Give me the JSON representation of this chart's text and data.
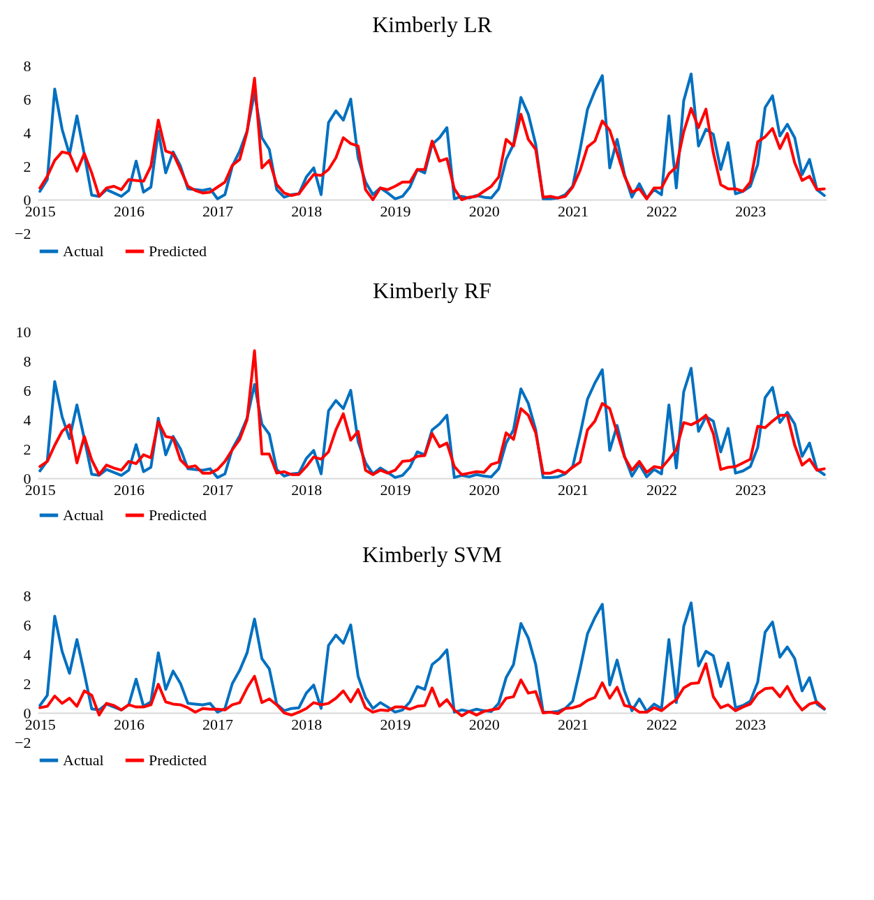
{
  "chart_data": [
    {
      "type": "line",
      "title": "Kimberly LR",
      "categories": [
        "2015",
        null,
        null,
        null,
        null,
        null,
        null,
        null,
        null,
        null,
        null,
        null,
        "2016",
        null,
        null,
        null,
        null,
        null,
        null,
        null,
        null,
        null,
        null,
        null,
        "2017",
        null,
        null,
        null,
        null,
        null,
        null,
        null,
        null,
        null,
        null,
        null,
        "2018",
        null,
        null,
        null,
        null,
        null,
        null,
        null,
        null,
        null,
        null,
        null,
        "2019",
        null,
        null,
        null,
        null,
        null,
        null,
        null,
        null,
        null,
        null,
        null,
        "2020",
        null,
        null,
        null,
        null,
        null,
        null,
        null,
        null,
        null,
        null,
        null,
        "2021",
        null,
        null,
        null,
        null,
        null,
        null,
        null,
        null,
        null,
        null,
        null,
        "2022",
        null,
        null,
        null,
        null,
        null,
        null,
        null,
        null,
        null,
        null,
        null,
        "2023",
        null,
        null,
        null,
        null,
        null,
        null,
        null,
        null,
        null,
        null
      ],
      "series": [
        {
          "name": "Actual",
          "color": "#0070c0",
          "values": [
            0.5,
            1.2,
            6.6,
            4.2,
            2.7,
            5.0,
            2.7,
            0.27,
            0.2,
            0.6,
            0.4,
            0.2,
            0.55,
            2.3,
            0.45,
            0.75,
            4.1,
            1.6,
            2.85,
            2.0,
            0.65,
            0.6,
            0.55,
            0.65,
            0.05,
            0.3,
            2.0,
            2.9,
            4.1,
            6.4,
            3.7,
            3.0,
            0.6,
            0.15,
            0.3,
            0.35,
            1.35,
            1.9,
            0.3,
            4.6,
            5.3,
            4.75,
            6.0,
            2.5,
            1.05,
            0.3,
            0.7,
            0.4,
            0.05,
            0.2,
            0.75,
            1.8,
            1.6,
            3.3,
            3.7,
            4.3,
            0.05,
            0.2,
            0.1,
            0.25,
            0.15,
            0.1,
            0.65,
            2.4,
            3.3,
            6.1,
            5.1,
            3.3,
            0.05,
            0.05,
            0.1,
            0.3,
            0.8,
            3.0,
            5.4,
            6.5,
            7.4,
            1.9,
            3.6,
            1.5,
            0.15,
            0.95,
            0.1,
            0.6,
            0.3,
            5.0,
            0.7,
            5.9,
            7.5,
            3.2,
            4.2,
            3.9,
            1.8,
            3.4,
            0.35,
            0.5,
            0.8,
            2.1,
            5.5,
            6.2,
            3.8,
            4.5,
            3.7,
            1.5,
            2.4,
            0.6,
            0.25
          ]
        },
        {
          "name": "Predicted",
          "color": "#ff0000",
          "values": [
            0.7,
            1.4,
            2.35,
            2.85,
            2.75,
            1.7,
            2.75,
            1.6,
            0.2,
            0.7,
            0.8,
            0.6,
            1.2,
            1.15,
            1.1,
            2.0,
            4.75,
            2.9,
            2.75,
            1.8,
            0.8,
            0.55,
            0.4,
            0.45,
            0.75,
            1.05,
            2.05,
            2.4,
            4.05,
            7.25,
            1.9,
            2.35,
            0.9,
            0.4,
            0.25,
            0.35,
            0.95,
            1.5,
            1.45,
            1.8,
            2.5,
            3.7,
            3.35,
            3.2,
            0.6,
            0,
            0.7,
            0.6,
            0.8,
            1.05,
            1.05,
            1.8,
            1.8,
            3.5,
            2.3,
            2.45,
            0.65,
            0,
            0.15,
            0.2,
            0.5,
            0.8,
            1.35,
            3.6,
            3.2,
            5.1,
            3.6,
            3.0,
            0.15,
            0.2,
            0.1,
            0.2,
            0.75,
            1.75,
            3.15,
            3.5,
            4.7,
            4.15,
            2.8,
            1.4,
            0.45,
            0.65,
            0.05,
            0.7,
            0.7,
            1.55,
            1.95,
            4.05,
            5.45,
            4.3,
            5.4,
            2.8,
            0.9,
            0.65,
            0.65,
            0.5,
            1.05,
            3.45,
            3.75,
            4.25,
            3.05,
            3.95,
            2.2,
            1.15,
            1.4,
            0.6,
            0.65
          ]
        }
      ],
      "ylim": [
        -2,
        8
      ],
      "yticks": [
        -2,
        0,
        2,
        4,
        6,
        8
      ],
      "legend": "bottom",
      "line_style": "solid"
    },
    {
      "type": "line",
      "title": "Kimberly RF",
      "categories": [
        "2015",
        null,
        null,
        null,
        null,
        null,
        null,
        null,
        null,
        null,
        null,
        null,
        "2016",
        null,
        null,
        null,
        null,
        null,
        null,
        null,
        null,
        null,
        null,
        null,
        "2017",
        null,
        null,
        null,
        null,
        null,
        null,
        null,
        null,
        null,
        null,
        null,
        "2018",
        null,
        null,
        null,
        null,
        null,
        null,
        null,
        null,
        null,
        null,
        null,
        "2019",
        null,
        null,
        null,
        null,
        null,
        null,
        null,
        null,
        null,
        null,
        null,
        "2020",
        null,
        null,
        null,
        null,
        null,
        null,
        null,
        null,
        null,
        null,
        null,
        "2021",
        null,
        null,
        null,
        null,
        null,
        null,
        null,
        null,
        null,
        null,
        null,
        "2022",
        null,
        null,
        null,
        null,
        null,
        null,
        null,
        null,
        null,
        null,
        null,
        "2023",
        null,
        null,
        null,
        null,
        null,
        null,
        null,
        null,
        null,
        null
      ],
      "series": [
        {
          "name": "Actual",
          "color": "#0070c0",
          "values": [
            0.5,
            1.2,
            6.6,
            4.2,
            2.7,
            5.0,
            2.7,
            0.27,
            0.2,
            0.6,
            0.4,
            0.2,
            0.55,
            2.3,
            0.45,
            0.75,
            4.1,
            1.6,
            2.85,
            2.0,
            0.65,
            0.6,
            0.55,
            0.65,
            0.05,
            0.3,
            2.0,
            2.9,
            4.1,
            6.4,
            3.7,
            3.0,
            0.6,
            0.15,
            0.3,
            0.35,
            1.35,
            1.9,
            0.3,
            4.6,
            5.3,
            4.75,
            6.0,
            2.5,
            1.05,
            0.3,
            0.7,
            0.4,
            0.05,
            0.2,
            0.75,
            1.8,
            1.6,
            3.3,
            3.7,
            4.3,
            0.05,
            0.2,
            0.1,
            0.25,
            0.15,
            0.1,
            0.65,
            2.4,
            3.3,
            6.1,
            5.1,
            3.3,
            0.05,
            0.05,
            0.1,
            0.3,
            0.8,
            3.0,
            5.4,
            6.5,
            7.4,
            1.9,
            3.6,
            1.5,
            0.15,
            0.95,
            0.1,
            0.6,
            0.3,
            5.0,
            0.7,
            5.9,
            7.5,
            3.2,
            4.2,
            3.9,
            1.8,
            3.4,
            0.35,
            0.5,
            0.8,
            2.1,
            5.5,
            6.2,
            3.8,
            4.5,
            3.7,
            1.5,
            2.4,
            0.6,
            0.25
          ]
        },
        {
          "name": "Predicted",
          "color": "#ff0000",
          "values": [
            0.8,
            1.15,
            2.25,
            3.2,
            3.65,
            1.05,
            2.85,
            1.25,
            0.25,
            0.9,
            0.7,
            0.55,
            1.15,
            1.0,
            1.6,
            1.4,
            3.85,
            2.85,
            2.75,
            1.25,
            0.75,
            0.85,
            0.35,
            0.35,
            0.6,
            1.15,
            1.95,
            2.65,
            4.0,
            8.7,
            1.65,
            1.65,
            0.35,
            0.45,
            0.25,
            0.25,
            0.8,
            1.45,
            1.3,
            1.8,
            3.3,
            4.4,
            2.6,
            3.2,
            0.55,
            0.25,
            0.55,
            0.35,
            0.55,
            1.15,
            1.2,
            1.5,
            1.55,
            3.05,
            2.15,
            2.4,
            0.8,
            0.25,
            0.35,
            0.45,
            0.4,
            0.95,
            1.1,
            3.1,
            2.65,
            4.75,
            4.3,
            3.1,
            0.35,
            0.35,
            0.55,
            0.35,
            0.75,
            1.1,
            3.3,
            3.9,
            5.1,
            4.75,
            3.1,
            1.45,
            0.55,
            1.15,
            0.4,
            0.8,
            0.7,
            1.3,
            1.95,
            3.8,
            3.65,
            3.9,
            4.3,
            3.05,
            0.6,
            0.75,
            0.8,
            1.05,
            1.3,
            3.55,
            3.45,
            3.9,
            4.3,
            4.3,
            2.25,
            0.9,
            1.3,
            0.55,
            0.65
          ]
        }
      ],
      "ylim": [
        0,
        10
      ],
      "yticks": [
        0,
        2,
        4,
        6,
        8,
        10
      ],
      "legend": "bottom",
      "line_style": "solid"
    },
    {
      "type": "line",
      "title": "Kimberly SVM",
      "categories": [
        "2015",
        null,
        null,
        null,
        null,
        null,
        null,
        null,
        null,
        null,
        null,
        null,
        "2016",
        null,
        null,
        null,
        null,
        null,
        null,
        null,
        null,
        null,
        null,
        null,
        "2017",
        null,
        null,
        null,
        null,
        null,
        null,
        null,
        null,
        null,
        null,
        null,
        "2018",
        null,
        null,
        null,
        null,
        null,
        null,
        null,
        null,
        null,
        null,
        null,
        "2019",
        null,
        null,
        null,
        null,
        null,
        null,
        null,
        null,
        null,
        null,
        null,
        "2020",
        null,
        null,
        null,
        null,
        null,
        null,
        null,
        null,
        null,
        null,
        null,
        "2021",
        null,
        null,
        null,
        null,
        null,
        null,
        null,
        null,
        null,
        null,
        null,
        "2022",
        null,
        null,
        null,
        null,
        null,
        null,
        null,
        null,
        null,
        null,
        null,
        "2023",
        null,
        null,
        null,
        null,
        null,
        null,
        null,
        null,
        null,
        null
      ],
      "series": [
        {
          "name": "Actual",
          "color": "#0070c0",
          "values": [
            0.5,
            1.2,
            6.6,
            4.2,
            2.7,
            5.0,
            2.7,
            0.27,
            0.2,
            0.6,
            0.4,
            0.2,
            0.55,
            2.3,
            0.45,
            0.75,
            4.1,
            1.6,
            2.85,
            2.0,
            0.65,
            0.6,
            0.55,
            0.65,
            0.05,
            0.3,
            2.0,
            2.9,
            4.1,
            6.4,
            3.7,
            3.0,
            0.6,
            0.15,
            0.3,
            0.35,
            1.35,
            1.9,
            0.3,
            4.6,
            5.3,
            4.75,
            6.0,
            2.5,
            1.05,
            0.3,
            0.7,
            0.4,
            0.05,
            0.2,
            0.75,
            1.8,
            1.6,
            3.3,
            3.7,
            4.3,
            0.05,
            0.2,
            0.1,
            0.25,
            0.15,
            0.1,
            0.65,
            2.4,
            3.3,
            6.1,
            5.1,
            3.3,
            0.05,
            0.05,
            0.1,
            0.3,
            0.8,
            3.0,
            5.4,
            6.5,
            7.4,
            1.9,
            3.6,
            1.5,
            0.15,
            0.95,
            0.1,
            0.6,
            0.3,
            5.0,
            0.7,
            5.9,
            7.5,
            3.2,
            4.2,
            3.9,
            1.8,
            3.4,
            0.35,
            0.5,
            0.8,
            2.1,
            5.5,
            6.2,
            3.8,
            4.5,
            3.7,
            1.5,
            2.4,
            0.6,
            0.25
          ]
        },
        {
          "name": "Predicted",
          "color": "#ff0000",
          "values": [
            0.35,
            0.45,
            1.15,
            0.65,
            1.0,
            0.45,
            1.5,
            1.2,
            -0.15,
            0.65,
            0.5,
            0.2,
            0.55,
            0.4,
            0.4,
            0.55,
            1.95,
            0.75,
            0.6,
            0.55,
            0.35,
            0.05,
            0.3,
            0.25,
            0.25,
            0.2,
            0.55,
            0.7,
            1.7,
            2.5,
            0.7,
            0.95,
            0.55,
            0,
            -0.15,
            0.05,
            0.3,
            0.7,
            0.55,
            0.65,
            1.0,
            1.5,
            0.75,
            1.6,
            0.35,
            0.05,
            0.2,
            0.15,
            0.4,
            0.4,
            0.25,
            0.45,
            0.5,
            1.7,
            0.45,
            0.9,
            0.2,
            -0.2,
            0.1,
            -0.15,
            0.1,
            0.2,
            0.3,
            1.0,
            1.1,
            2.25,
            1.35,
            1.45,
            0,
            0.05,
            -0.05,
            0.3,
            0.35,
            0.5,
            0.85,
            1.05,
            2.05,
            1.0,
            1.75,
            0.5,
            0.4,
            0.05,
            0.05,
            0.35,
            0.15,
            0.55,
            0.9,
            1.7,
            2.0,
            2.05,
            3.35,
            1.1,
            0.35,
            0.55,
            0.15,
            0.4,
            0.6,
            1.3,
            1.65,
            1.7,
            1.1,
            1.8,
            0.85,
            0.2,
            0.6,
            0.75,
            0.3
          ]
        }
      ],
      "ylim": [
        -2,
        8
      ],
      "yticks": [
        -2,
        0,
        2,
        4,
        6,
        8
      ],
      "legend": "bottom",
      "line_style": "solid"
    }
  ]
}
